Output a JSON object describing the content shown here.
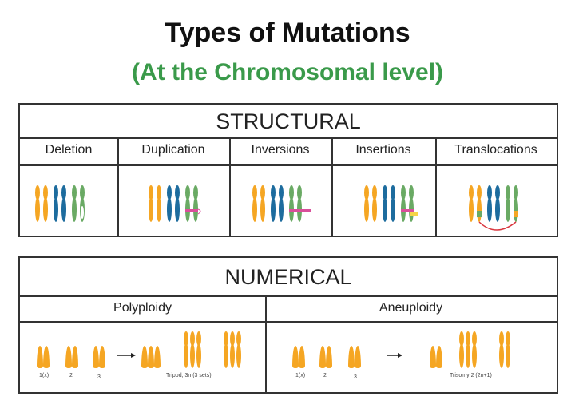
{
  "title": "Types of Mutations",
  "subtitle": "(At the Chromosomal level)",
  "structural": {
    "heading": "STRUCTURAL",
    "columns": [
      "Deletion",
      "Duplication",
      "Inversions",
      "Insertions",
      "Translocations"
    ]
  },
  "numerical": {
    "heading": "NUMERICAL",
    "columns": [
      "Polyploidy",
      "Aneuploidy"
    ],
    "polyploidy_labels": [
      "1(x)",
      "2",
      "3",
      "Tripod; 3n (3 sets)"
    ],
    "aneuploidy_labels": [
      "1(x)",
      "2",
      "3",
      "Trisomy 2 (2n+1)"
    ]
  },
  "colors": {
    "orange": "#f5a623",
    "blue": "#1d6c9e",
    "green": "#6aaa64",
    "pink": "#d94f9a",
    "title_green": "#3a9a4a",
    "arrow_red": "#d9363e"
  }
}
